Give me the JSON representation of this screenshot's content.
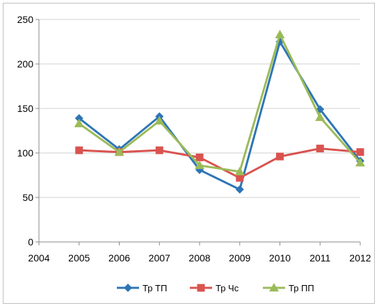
{
  "chart_data": {
    "type": "line",
    "x": [
      2004,
      2005,
      2006,
      2007,
      2008,
      2009,
      2010,
      2011,
      2012
    ],
    "xlim": [
      2004,
      2012
    ],
    "ylim": [
      0,
      250
    ],
    "yticks": [
      0,
      50,
      100,
      150,
      200,
      250
    ],
    "xticks": [
      "2004",
      "2005",
      "2006",
      "2007",
      "2008",
      "2009",
      "2010",
      "2011",
      "2012"
    ],
    "grid": "horizontal",
    "legend": "bottom",
    "series": [
      {
        "name": "Тр ТП",
        "color": "#2e75b6",
        "marker": "diamond",
        "x": [
          2005,
          2006,
          2007,
          2008,
          2009,
          2010,
          2011,
          2012
        ],
        "values": [
          139,
          104,
          141,
          81,
          59,
          225,
          149,
          91
        ]
      },
      {
        "name": "Тр Чс",
        "color": "#d9534f",
        "marker": "square",
        "x": [
          2005,
          2006,
          2007,
          2008,
          2009,
          2010,
          2011,
          2012
        ],
        "values": [
          103,
          101,
          103,
          95,
          72,
          96,
          105,
          101
        ]
      },
      {
        "name": "Тр ПП",
        "color": "#9bbb59",
        "marker": "triangle",
        "x": [
          2005,
          2006,
          2007,
          2008,
          2009,
          2010,
          2011,
          2012
        ],
        "values": [
          133,
          101,
          136,
          86,
          79,
          233,
          140,
          89
        ]
      }
    ]
  }
}
